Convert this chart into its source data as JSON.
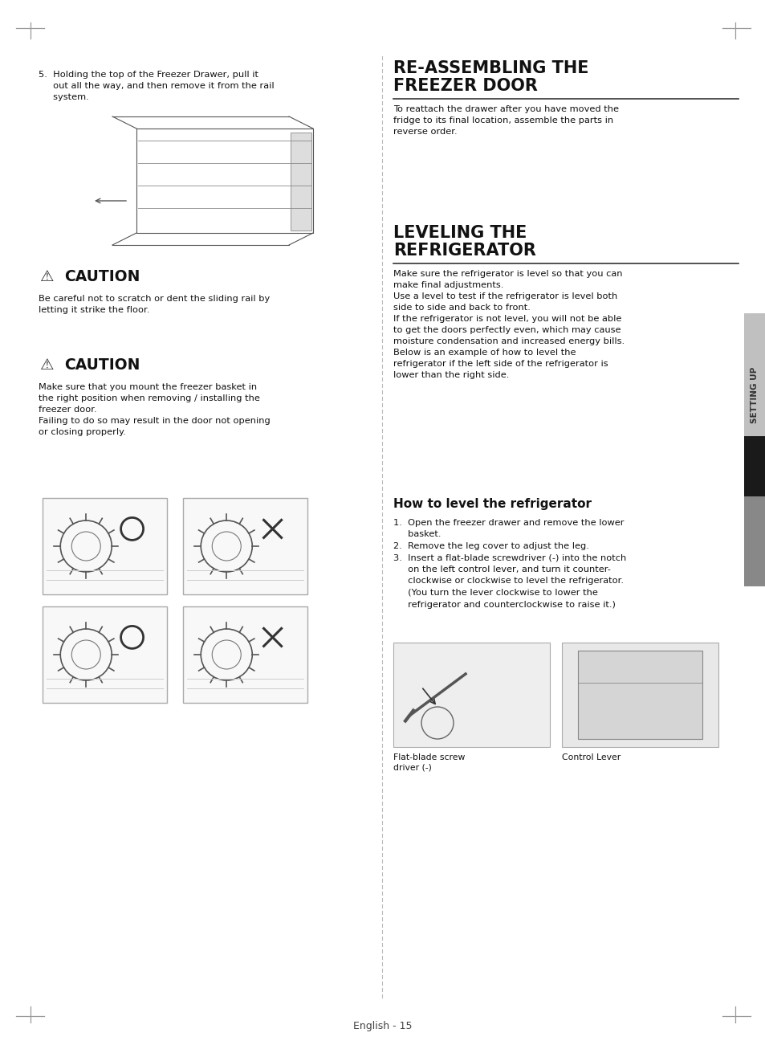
{
  "page_bg": "#ffffff",
  "text_color": "#111111",
  "step5_text_line1": "5.  Holding the top of the Freezer Drawer, pull it",
  "step5_text_line2": "     out all the way, and then remove it from the rail",
  "step5_text_line3": "     system.",
  "caution1_body": "Be careful not to scratch or dent the sliding rail by\nletting it strike the floor.",
  "caution2_body": "Make sure that you mount the freezer basket in\nthe right position when removing / installing the\nfreezer door.\nFailing to do so may result in the door not opening\nor closing properly.",
  "reassemble_title_line1": "RE-ASSEMBLING THE",
  "reassemble_title_line2": "FREEZER DOOR",
  "reassemble_body": "To reattach the drawer after you have moved the\nfridge to its final location, assemble the parts in\nreverse order.",
  "leveling_title_line1": "LEVELING THE",
  "leveling_title_line2": "REFRIGERATOR",
  "leveling_body": "Make sure the refrigerator is level so that you can\nmake final adjustments.\nUse a level to test if the refrigerator is level both\nside to side and back to front.\nIf the refrigerator is not level, you will not be able\nto get the doors perfectly even, which may cause\nmoisture condensation and increased energy bills.\nBelow is an example of how to level the\nrefrigerator if the left side of the refrigerator is\nlower than the right side.",
  "how_title": "How to level the refrigerator",
  "step_r1": "1.  Open the freezer drawer and remove the lower",
  "step_r1b": "     basket.",
  "step_r2": "2.  Remove the leg cover to adjust the leg.",
  "step_r3": "3.  Insert a flat-blade screwdriver (-) into the notch",
  "step_r3b": "     on the left control lever, and turn it counter-",
  "step_r3c": "     clockwise or clockwise to level the refrigerator.",
  "step_r3d": "     (You turn the lever clockwise to lower the",
  "step_r3e": "     refrigerator and counterclockwise to raise it.)",
  "img_label1_line1": "Flat-blade screw",
  "img_label1_line2": "driver (-)",
  "img_label2": "Control Lever",
  "footer_text": "English - 15",
  "sidebar_text": "SETTING UP"
}
